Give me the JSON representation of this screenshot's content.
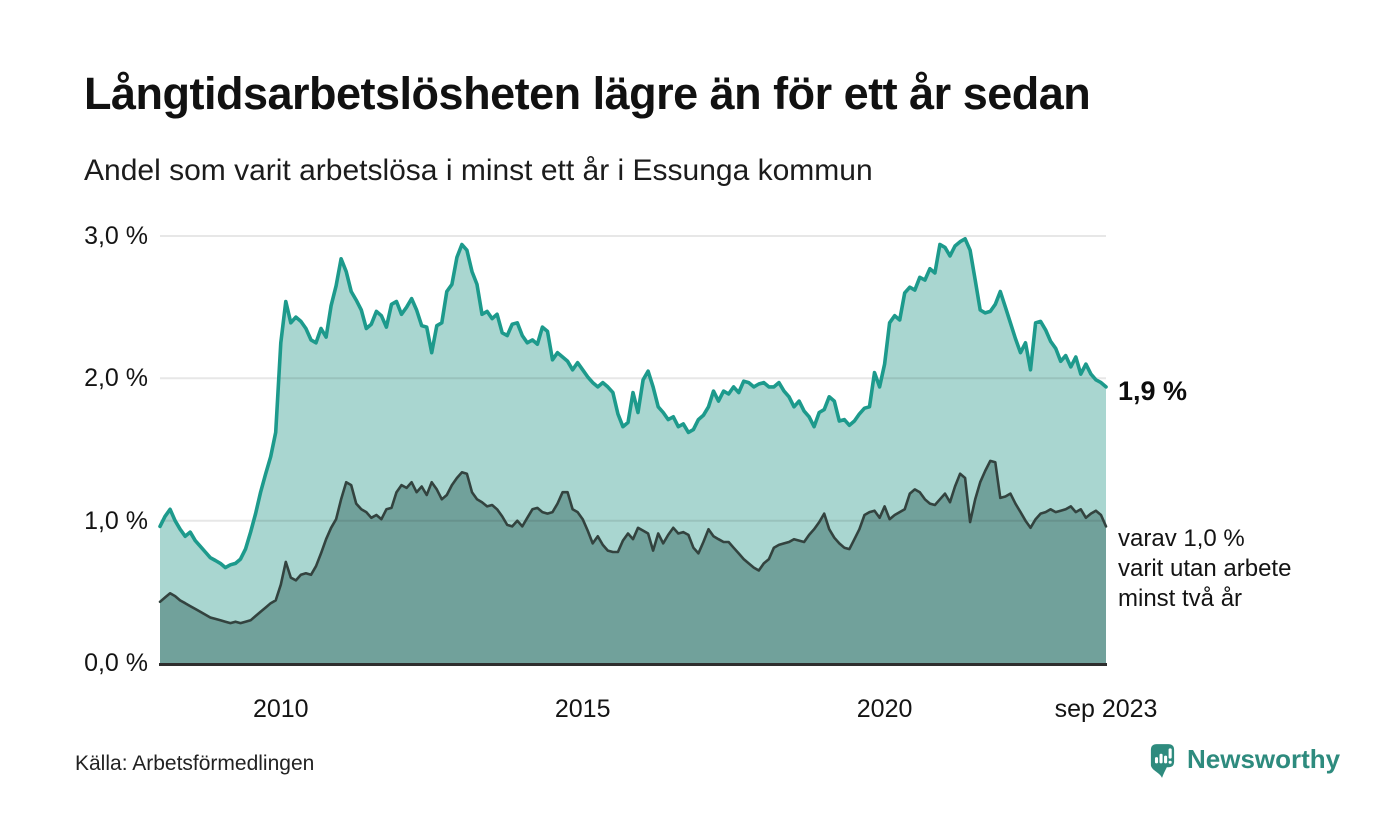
{
  "title": "Långtidsarbetslösheten lägre än för ett år sedan",
  "subtitle": "Andel som varit arbetslösa i minst ett år i Essunga kommun",
  "source": "Källa: Arbetsförmedlingen",
  "branding": {
    "name": "Newsworthy",
    "color": "#2e8b7e"
  },
  "annotations": {
    "latest_total": "1,9 %",
    "detail_lines": [
      "varav 1,0 %",
      "varit utan arbete",
      "minst två år"
    ]
  },
  "chart_data": {
    "type": "area",
    "title": "Långtidsarbetslösheten lägre än för ett år sedan",
    "subtitle": "Andel som varit arbetslösa i minst ett år i Essunga kommun",
    "unit": "percent",
    "frequency": "monthly",
    "x_start": "2008-01",
    "x_end": "2023-09",
    "ylim": [
      0,
      3.15
    ],
    "grid": "horizontal",
    "y_ticks": [
      {
        "label": "0,0 %",
        "value": 0
      },
      {
        "label": "1,0 %",
        "value": 1
      },
      {
        "label": "2,0 %",
        "value": 2
      },
      {
        "label": "3,0 %",
        "value": 3
      }
    ],
    "x_ticks": [
      {
        "label": "2010",
        "month_index": 24
      },
      {
        "label": "2015",
        "month_index": 84
      },
      {
        "label": "2020",
        "month_index": 144
      },
      {
        "label": "sep 2023",
        "month_index": 188
      }
    ],
    "colors": {
      "grid": "rgba(20,20,20,0.10)",
      "baseline": "#2e2e2e"
    },
    "series": [
      {
        "name": "Arbetslösa minst ett år",
        "line_color": "#1d9a8c",
        "fill_color": "#a9d6d0",
        "latest_label": "1,9 %",
        "values": [
          0.96,
          1.03,
          1.08,
          1.0,
          0.94,
          0.89,
          0.92,
          0.86,
          0.82,
          0.78,
          0.74,
          0.72,
          0.7,
          0.67,
          0.69,
          0.7,
          0.73,
          0.8,
          0.92,
          1.05,
          1.2,
          1.33,
          1.45,
          1.62,
          2.25,
          2.54,
          2.39,
          2.43,
          2.4,
          2.35,
          2.27,
          2.25,
          2.35,
          2.29,
          2.51,
          2.65,
          2.84,
          2.75,
          2.61,
          2.55,
          2.48,
          2.35,
          2.38,
          2.47,
          2.44,
          2.36,
          2.52,
          2.54,
          2.45,
          2.5,
          2.56,
          2.48,
          2.37,
          2.36,
          2.18,
          2.37,
          2.39,
          2.61,
          2.66,
          2.85,
          2.94,
          2.9,
          2.75,
          2.66,
          2.45,
          2.47,
          2.42,
          2.45,
          2.32,
          2.3,
          2.38,
          2.39,
          2.3,
          2.25,
          2.27,
          2.24,
          2.36,
          2.33,
          2.13,
          2.18,
          2.15,
          2.12,
          2.06,
          2.11,
          2.06,
          2.01,
          1.97,
          1.94,
          1.97,
          1.94,
          1.9,
          1.75,
          1.66,
          1.69,
          1.9,
          1.76,
          1.99,
          2.05,
          1.94,
          1.8,
          1.76,
          1.71,
          1.73,
          1.66,
          1.68,
          1.62,
          1.64,
          1.71,
          1.74,
          1.8,
          1.91,
          1.84,
          1.91,
          1.89,
          1.94,
          1.9,
          1.98,
          1.97,
          1.94,
          1.96,
          1.97,
          1.94,
          1.94,
          1.97,
          1.91,
          1.87,
          1.8,
          1.84,
          1.77,
          1.73,
          1.66,
          1.76,
          1.78,
          1.87,
          1.84,
          1.7,
          1.71,
          1.67,
          1.7,
          1.75,
          1.79,
          1.8,
          2.04,
          1.94,
          2.1,
          2.39,
          2.44,
          2.41,
          2.6,
          2.64,
          2.62,
          2.71,
          2.69,
          2.77,
          2.74,
          2.94,
          2.92,
          2.86,
          2.93,
          2.96,
          2.98,
          2.9,
          2.69,
          2.48,
          2.46,
          2.47,
          2.52,
          2.61,
          2.5,
          2.39,
          2.28,
          2.18,
          2.25,
          2.06,
          2.39,
          2.4,
          2.34,
          2.26,
          2.21,
          2.12,
          2.16,
          2.08,
          2.15,
          2.03,
          2.1,
          2.03,
          1.99,
          1.97,
          1.94
        ]
      },
      {
        "name": "Arbetslösa minst två år",
        "line_color": "#33433f",
        "fill_color": "#71a19b",
        "latest_label": "varav 1,0 % varit utan arbete minst två år",
        "values": [
          0.43,
          0.46,
          0.49,
          0.47,
          0.44,
          0.42,
          0.4,
          0.38,
          0.36,
          0.34,
          0.32,
          0.31,
          0.3,
          0.29,
          0.28,
          0.29,
          0.28,
          0.29,
          0.3,
          0.33,
          0.36,
          0.39,
          0.42,
          0.44,
          0.55,
          0.71,
          0.6,
          0.58,
          0.62,
          0.63,
          0.62,
          0.68,
          0.77,
          0.87,
          0.95,
          1.01,
          1.15,
          1.27,
          1.25,
          1.12,
          1.08,
          1.06,
          1.02,
          1.04,
          1.01,
          1.08,
          1.09,
          1.2,
          1.25,
          1.23,
          1.27,
          1.2,
          1.24,
          1.18,
          1.27,
          1.22,
          1.15,
          1.18,
          1.25,
          1.3,
          1.34,
          1.33,
          1.2,
          1.15,
          1.13,
          1.1,
          1.11,
          1.08,
          1.03,
          0.97,
          0.96,
          1.0,
          0.96,
          1.02,
          1.08,
          1.09,
          1.06,
          1.05,
          1.06,
          1.12,
          1.2,
          1.2,
          1.08,
          1.06,
          1.01,
          0.93,
          0.84,
          0.89,
          0.83,
          0.79,
          0.78,
          0.78,
          0.86,
          0.91,
          0.87,
          0.95,
          0.93,
          0.91,
          0.79,
          0.91,
          0.84,
          0.9,
          0.95,
          0.91,
          0.92,
          0.9,
          0.81,
          0.77,
          0.85,
          0.94,
          0.89,
          0.87,
          0.85,
          0.85,
          0.81,
          0.77,
          0.73,
          0.7,
          0.67,
          0.65,
          0.7,
          0.73,
          0.81,
          0.83,
          0.84,
          0.85,
          0.87,
          0.86,
          0.85,
          0.9,
          0.94,
          0.99,
          1.05,
          0.94,
          0.88,
          0.84,
          0.81,
          0.8,
          0.87,
          0.94,
          1.04,
          1.06,
          1.07,
          1.02,
          1.1,
          1.01,
          1.04,
          1.06,
          1.08,
          1.19,
          1.22,
          1.2,
          1.15,
          1.12,
          1.11,
          1.15,
          1.19,
          1.13,
          1.24,
          1.33,
          1.3,
          0.99,
          1.15,
          1.27,
          1.35,
          1.42,
          1.41,
          1.16,
          1.17,
          1.19,
          1.12,
          1.06,
          1.0,
          0.95,
          1.01,
          1.05,
          1.06,
          1.08,
          1.06,
          1.07,
          1.08,
          1.1,
          1.06,
          1.08,
          1.02,
          1.05,
          1.07,
          1.04,
          0.96
        ]
      }
    ]
  }
}
